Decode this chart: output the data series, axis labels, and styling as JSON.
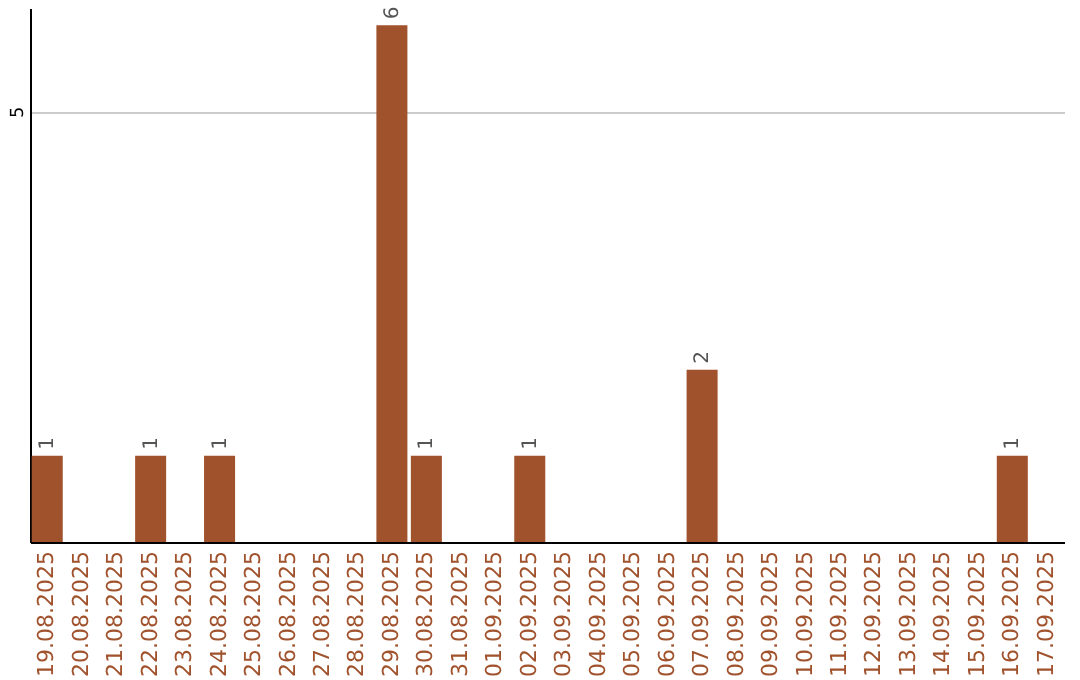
{
  "chart_data": {
    "type": "bar",
    "categories": [
      "19.08.2025",
      "20.08.2025",
      "21.08.2025",
      "22.08.2025",
      "23.08.2025",
      "24.08.2025",
      "25.08.2025",
      "26.08.2025",
      "27.08.2025",
      "28.08.2025",
      "29.08.2025",
      "30.08.2025",
      "31.08.2025",
      "01.09.2025",
      "02.09.2025",
      "03.09.2025",
      "04.09.2025",
      "05.09.2025",
      "06.09.2025",
      "07.09.2025",
      "08.09.2025",
      "09.09.2025",
      "10.09.2025",
      "11.09.2025",
      "12.09.2025",
      "13.09.2025",
      "14.09.2025",
      "15.09.2025",
      "16.09.2025",
      "17.09.2025"
    ],
    "values": [
      1,
      0,
      0,
      1,
      0,
      1,
      0,
      0,
      0,
      0,
      6,
      1,
      0,
      0,
      1,
      0,
      0,
      0,
      0,
      2,
      0,
      0,
      0,
      0,
      0,
      0,
      0,
      0,
      1,
      0
    ],
    "value_labels": [
      "1",
      null,
      null,
      "1",
      null,
      "1",
      null,
      null,
      null,
      null,
      "6",
      "1",
      null,
      null,
      "1",
      null,
      null,
      null,
      null,
      "2",
      null,
      null,
      null,
      null,
      null,
      null,
      null,
      null,
      "1",
      null
    ],
    "color": "#a0522d",
    "ylim": [
      0,
      6.2
    ],
    "yticks": [
      5
    ],
    "grid": "y"
  }
}
